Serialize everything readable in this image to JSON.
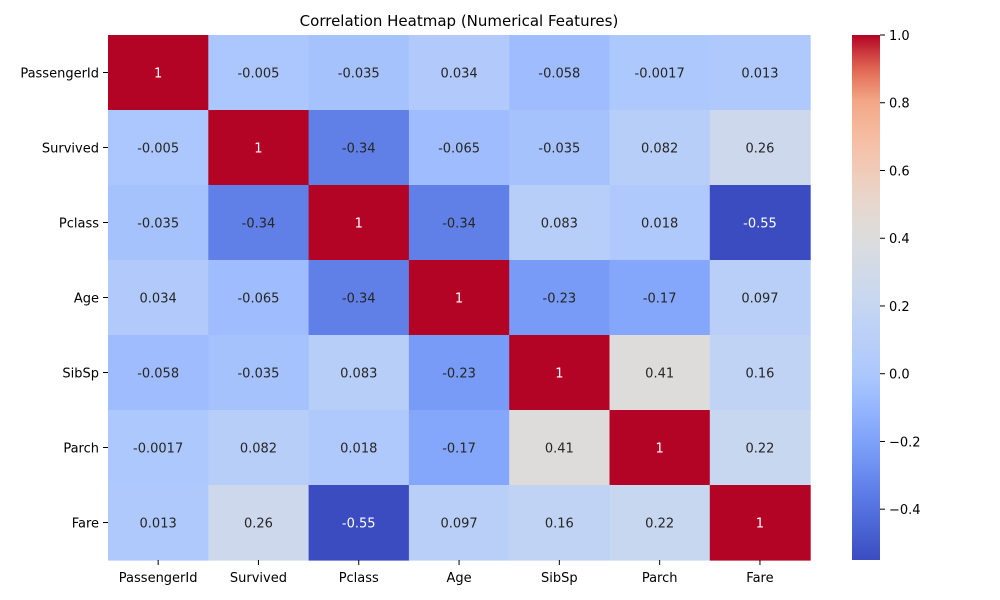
{
  "chart_data": {
    "type": "heatmap",
    "title": "Correlation Heatmap (Numerical Features)",
    "x_labels": [
      "PassengerId",
      "Survived",
      "Pclass",
      "Age",
      "SibSp",
      "Parch",
      "Fare"
    ],
    "y_labels": [
      "PassengerId",
      "Survived",
      "Pclass",
      "Age",
      "SibSp",
      "Parch",
      "Fare"
    ],
    "values": [
      [
        1,
        -0.005,
        -0.035,
        0.034,
        -0.058,
        -0.0017,
        0.013
      ],
      [
        -0.005,
        1,
        -0.34,
        -0.065,
        -0.035,
        0.082,
        0.26
      ],
      [
        -0.035,
        -0.34,
        1,
        -0.34,
        0.083,
        0.018,
        -0.55
      ],
      [
        0.034,
        -0.065,
        -0.34,
        1,
        -0.23,
        -0.17,
        0.097
      ],
      [
        -0.058,
        -0.035,
        0.083,
        -0.23,
        1,
        0.41,
        0.16
      ],
      [
        -0.0017,
        0.082,
        0.018,
        -0.17,
        0.41,
        1,
        0.22
      ],
      [
        0.013,
        0.26,
        -0.55,
        0.097,
        0.16,
        0.22,
        1
      ]
    ],
    "colormap": "coolwarm",
    "color_range": [
      -0.55,
      1
    ],
    "colorbar_ticks": [
      1.0,
      0.8,
      0.6,
      0.4,
      0.2,
      0.0,
      -0.2,
      -0.4
    ],
    "colorbar_tick_labels": [
      "1.0",
      "0.8",
      "0.6",
      "0.4",
      "0.2",
      "0.0",
      "−0.2",
      "−0.4"
    ],
    "annotated": true,
    "grid": false
  }
}
